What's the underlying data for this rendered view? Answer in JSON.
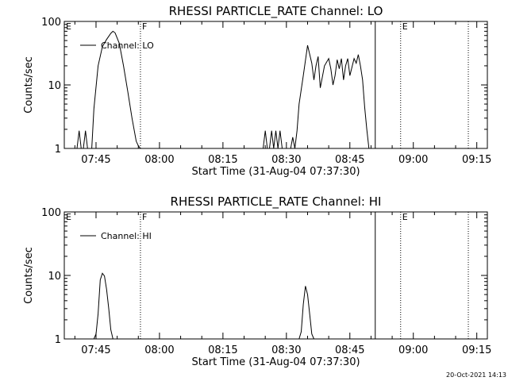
{
  "footer_stamp": "20-Oct-2021 14:13",
  "chart_data": [
    {
      "type": "line",
      "title": "RHESSI PARTICLE_RATE Channel: LO",
      "xlabel": "Start Time (31-Aug-04 07:37:30)",
      "ylabel": "Counts/sec",
      "log_y": true,
      "ylim": [
        1,
        100
      ],
      "xlim": [
        "07:37:30",
        "09:17:30"
      ],
      "x_tick_labels": [
        "07:45",
        "08:00",
        "08:15",
        "08:30",
        "08:45",
        "09:00",
        "09:15"
      ],
      "y_tick_labels": [
        "1",
        "10",
        "100"
      ],
      "legend": {
        "label": "Channel: LO",
        "placement": "top-left"
      },
      "markers": [
        {
          "time": "07:37:30",
          "label": "E",
          "style": "none"
        },
        {
          "time": "07:55:30",
          "label": "F",
          "style": "dotted"
        },
        {
          "time": "08:51:00",
          "label": "",
          "style": "solid"
        },
        {
          "time": "08:57:00",
          "label": "E",
          "style": "dotted"
        },
        {
          "time": "09:13:00",
          "label": "",
          "style": "dotted"
        }
      ],
      "series": [
        {
          "name": "Channel: LO",
          "segments": [
            [
              [
                "07:40:30",
                0.9
              ],
              [
                "07:41:00",
                1.9
              ],
              [
                "07:41:30",
                1.0
              ],
              [
                "07:42:00",
                0.9
              ],
              [
                "07:42:30",
                1.9
              ],
              [
                "07:43:00",
                0.9
              ],
              [
                "07:44:00",
                1.0
              ],
              [
                "07:44:30",
                4.2
              ],
              [
                "07:45:30",
                20
              ],
              [
                "07:46:30",
                40
              ],
              [
                "07:47:30",
                52
              ],
              [
                "07:48:30",
                65
              ],
              [
                "07:49:00",
                70
              ],
              [
                "07:49:30",
                66
              ],
              [
                "07:50:30",
                45
              ],
              [
                "07:51:30",
                20
              ],
              [
                "07:52:30",
                8
              ],
              [
                "07:53:30",
                3
              ],
              [
                "07:54:30",
                1.3
              ],
              [
                "07:55:00",
                1.1
              ],
              [
                "07:55:30",
                0.9
              ]
            ],
            [
              [
                "08:24:30",
                0.9
              ],
              [
                "08:25:00",
                1.9
              ],
              [
                "08:25:30",
                0.9
              ]
            ],
            [
              [
                "08:26:00",
                0.9
              ],
              [
                "08:26:30",
                1.9
              ],
              [
                "08:27:00",
                0.9
              ],
              [
                "08:27:30",
                1.9
              ],
              [
                "08:28:00",
                0.9
              ],
              [
                "08:28:30",
                1.9
              ],
              [
                "08:29:00",
                0.9
              ]
            ],
            [
              [
                "08:31:00",
                0.9
              ],
              [
                "08:31:30",
                1.5
              ],
              [
                "08:32:00",
                1.0
              ],
              [
                "08:32:30",
                1.9
              ],
              [
                "08:33:00",
                5.0
              ],
              [
                "08:34:00",
                14
              ],
              [
                "08:35:00",
                42
              ],
              [
                "08:36:00",
                22
              ],
              [
                "08:36:30",
                12
              ],
              [
                "08:37:00",
                20
              ],
              [
                "08:37:30",
                28
              ],
              [
                "08:38:00",
                9
              ],
              [
                "08:39:00",
                20
              ],
              [
                "08:40:00",
                26
              ],
              [
                "08:40:30",
                18
              ],
              [
                "08:41:00",
                10
              ],
              [
                "08:41:30",
                14
              ],
              [
                "08:42:00",
                25
              ],
              [
                "08:42:30",
                18
              ],
              [
                "08:43:00",
                26
              ],
              [
                "08:43:30",
                12
              ],
              [
                "08:44:00",
                20
              ],
              [
                "08:44:30",
                26
              ],
              [
                "08:45:00",
                14
              ],
              [
                "08:46:00",
                26
              ],
              [
                "08:46:30",
                22
              ],
              [
                "08:47:00",
                30
              ],
              [
                "08:47:30",
                20
              ],
              [
                "08:48:00",
                12
              ],
              [
                "08:48:30",
                4.5
              ],
              [
                "08:49:00",
                2.0
              ],
              [
                "08:49:30",
                1.0
              ],
              [
                "08:50:00",
                0.9
              ]
            ]
          ]
        }
      ]
    },
    {
      "type": "line",
      "title": "RHESSI PARTICLE_RATE Channel: HI",
      "xlabel": "Start Time (31-Aug-04 07:37:30)",
      "ylabel": "Counts/sec",
      "log_y": true,
      "ylim": [
        1,
        100
      ],
      "xlim": [
        "07:37:30",
        "09:17:30"
      ],
      "x_tick_labels": [
        "07:45",
        "08:00",
        "08:15",
        "08:30",
        "08:45",
        "09:00",
        "09:15"
      ],
      "y_tick_labels": [
        "1",
        "10",
        "100"
      ],
      "legend": {
        "label": "Channel: HI",
        "placement": "top-left"
      },
      "markers": [
        {
          "time": "07:37:30",
          "label": "E",
          "style": "none"
        },
        {
          "time": "07:55:30",
          "label": "F",
          "style": "dotted"
        },
        {
          "time": "08:51:00",
          "label": "",
          "style": "solid"
        },
        {
          "time": "08:57:00",
          "label": "E",
          "style": "dotted"
        },
        {
          "time": "09:13:00",
          "label": "",
          "style": "dotted"
        }
      ],
      "series": [
        {
          "name": "Channel: HI",
          "segments": [
            [
              [
                "07:44:30",
                0.9
              ],
              [
                "07:45:00",
                1.2
              ],
              [
                "07:45:30",
                2.5
              ],
              [
                "07:46:00",
                8.5
              ],
              [
                "07:46:30",
                10.8
              ],
              [
                "07:47:00",
                9.8
              ],
              [
                "07:47:30",
                6.0
              ],
              [
                "07:48:00",
                3.0
              ],
              [
                "07:48:30",
                1.4
              ],
              [
                "07:49:00",
                0.9
              ]
            ],
            [
              [
                "08:33:00",
                0.9
              ],
              [
                "08:33:30",
                1.3
              ],
              [
                "08:34:00",
                3.5
              ],
              [
                "08:34:30",
                6.8
              ],
              [
                "08:35:00",
                5.0
              ],
              [
                "08:35:30",
                2.5
              ],
              [
                "08:36:00",
                1.2
              ],
              [
                "08:36:30",
                0.9
              ]
            ]
          ]
        }
      ]
    }
  ]
}
